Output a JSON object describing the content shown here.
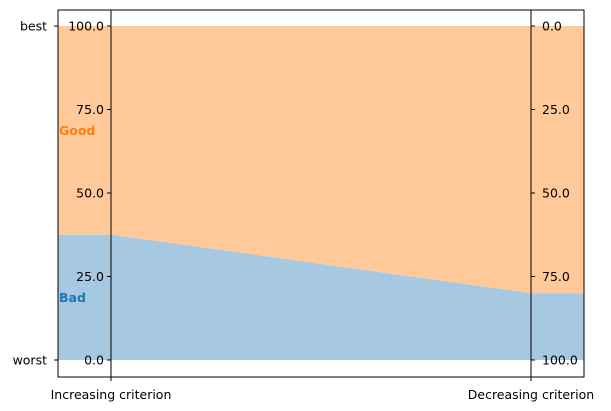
{
  "chart_data": {
    "type": "area",
    "categories": [
      "Increasing criterion",
      "Decreasing criterion"
    ],
    "ylim": [
      0,
      100
    ],
    "ylabels": {
      "top": "best",
      "bottom": "worst"
    },
    "axes": [
      {
        "name": "Increasing criterion",
        "direction": "increasing",
        "ticks": [
          "100.0",
          "75.0",
          "50.0",
          "25.0",
          "0.0"
        ],
        "tick_values": [
          100,
          75,
          50,
          25,
          0
        ]
      },
      {
        "name": "Decreasing criterion",
        "direction": "decreasing",
        "ticks": [
          "0.0",
          "25.0",
          "50.0",
          "75.0",
          "100.0"
        ],
        "tick_values": [
          0,
          25,
          50,
          75,
          100
        ]
      }
    ],
    "series": [
      {
        "name": "Bad",
        "color": "#1f77b4",
        "fill": "#a6c8e0",
        "values": [
          37.5,
          20
        ]
      },
      {
        "name": "Good",
        "color": "#ff7f0e",
        "fill": "#ffc99a",
        "values": [
          100,
          100
        ]
      }
    ],
    "grid": false
  }
}
